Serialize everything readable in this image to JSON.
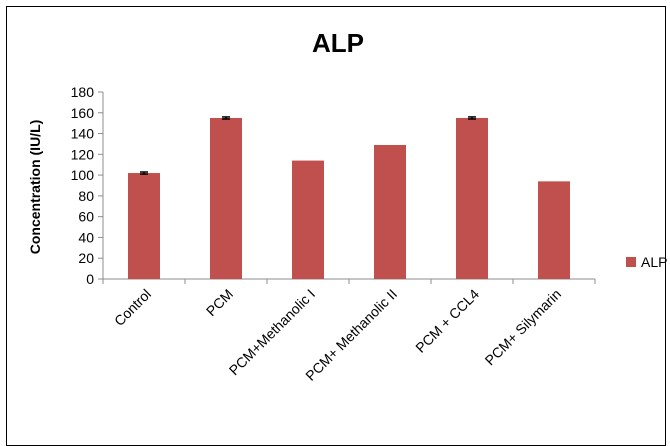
{
  "chart_data": {
    "type": "bar",
    "title": "ALP",
    "xlabel": "",
    "ylabel": "Concentration (IU/L)",
    "ylim": [
      0,
      180
    ],
    "ytick_step": 20,
    "categories": [
      "Control",
      "PCM",
      "PCM+Methanolic I",
      "PCM+ Methanolic II",
      "PCM + CCL4",
      "PCM+ Silymarin"
    ],
    "series": [
      {
        "name": "ALP",
        "values": [
          102,
          155,
          114,
          129,
          155,
          94
        ],
        "errors": [
          1,
          1,
          0,
          0,
          1,
          0
        ],
        "color": "#c0504d"
      }
    ],
    "grid": false,
    "legend_position": "right"
  }
}
